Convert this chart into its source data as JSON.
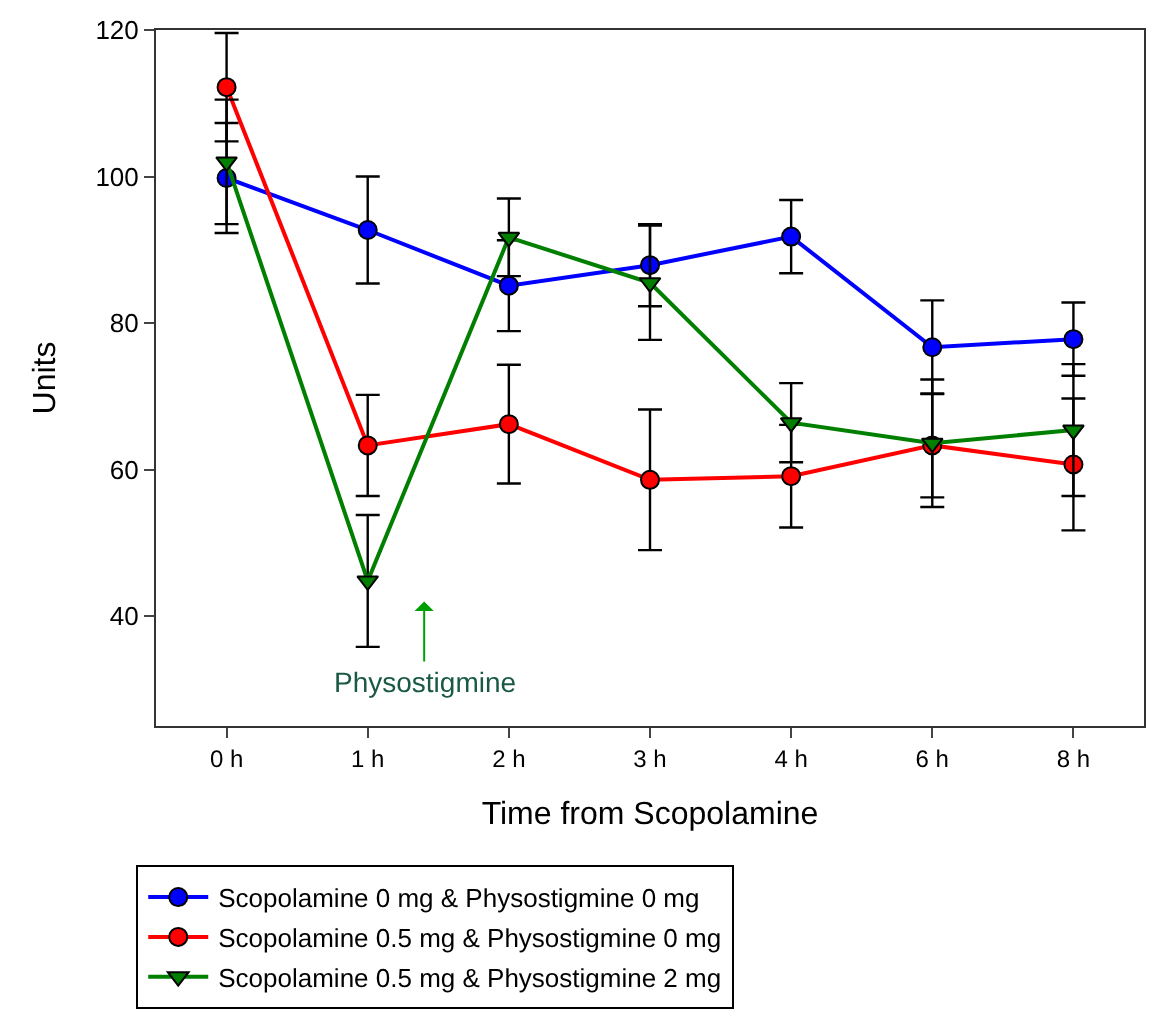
{
  "chart_data": {
    "type": "line",
    "xlabel": "Time from Scopolamine",
    "ylabel": "Units",
    "categories": [
      "0 h",
      "1 h",
      "2 h",
      "3 h",
      "4 h",
      "6 h",
      "8 h"
    ],
    "series": [
      {
        "name": "Scopolamine 0 mg & Physostigmine 0 mg",
        "color": "#0000ff",
        "marker": "circle",
        "values": [
          99.8,
          92.7,
          85.1,
          87.9,
          91.8,
          76.7,
          77.8
        ],
        "errors": [
          7.5,
          7.3,
          6.2,
          5.6,
          5,
          6.4,
          5
        ]
      },
      {
        "name": "Scopolamine 0.5 mg & Physostigmine 0 mg",
        "color": "#ff0000",
        "marker": "circle",
        "values": [
          112.2,
          63.3,
          66.2,
          58.6,
          59.1,
          63.3,
          60.7
        ],
        "errors": [
          7.4,
          6.9,
          8.1,
          9.6,
          7,
          7.1,
          9
        ]
      },
      {
        "name": "Scopolamine 0.5 mg & Physostigmine 2 mg",
        "color": "#007f00",
        "marker": "triangle",
        "values": [
          102,
          44.8,
          91.7,
          85.5,
          66.4,
          63.6,
          65.4
        ],
        "errors": [
          8.5,
          9,
          5.3,
          7.8,
          5.4,
          8.7,
          9
        ]
      }
    ],
    "ylim": [
      25,
      120
    ],
    "yticks": [
      40,
      60,
      80,
      100,
      120
    ],
    "annotations": [
      "Physostigmine"
    ],
    "legend": "bottom",
    "line_style": "solid"
  }
}
